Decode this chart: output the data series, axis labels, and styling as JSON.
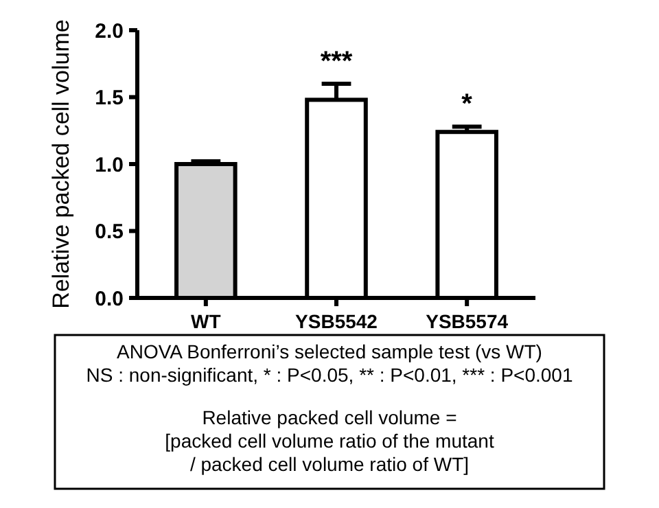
{
  "chart_data": {
    "type": "bar",
    "ylabel": "Relative packed cell volume",
    "categories": [
      "WT",
      "YSB5542",
      "YSB5574"
    ],
    "values": [
      1.0,
      1.48,
      1.24
    ],
    "errors": [
      0.02,
      0.12,
      0.04
    ],
    "colors": [
      "#d3d3d3",
      "#ffffff",
      "#ffffff"
    ],
    "ylim": [
      0,
      2
    ],
    "yticks": [
      {
        "value": 0,
        "label": "0.0"
      },
      {
        "value": 0.5,
        "label": "0.5"
      },
      {
        "value": 1,
        "label": "1.0"
      },
      {
        "value": 1.5,
        "label": "1.5"
      },
      {
        "value": 2,
        "label": "2.0"
      }
    ],
    "annotations": [
      {
        "text": "***",
        "x": "YSB5542",
        "y": 1.6
      },
      {
        "text": "*",
        "x": "YSB5574",
        "y": 1.28
      },
      "ANOVA Bonferroni’s selected sample test (vs WT)",
      "NS : non-significant, * : P<0.05, ** : P<0.01, *** : P<0.001",
      "Relative packed cell volume =",
      "[packed cell volume ratio of the mutant",
      "/ packed cell volume ratio of WT]"
    ]
  }
}
